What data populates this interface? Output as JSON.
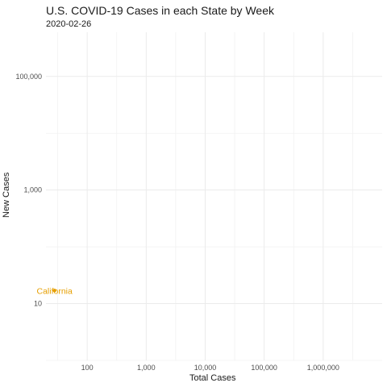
{
  "chart_data": {
    "type": "scatter",
    "title": "U.S. COVID-19 Cases in each State by Week",
    "subtitle": "2020-02-26",
    "xlabel": "Total Cases",
    "ylabel": "New Cases",
    "x_scale": "log10",
    "y_scale": "log10",
    "xlim": [
      20,
      10000000
    ],
    "ylim": [
      1,
      600000
    ],
    "x_ticks": [
      100,
      1000,
      10000,
      100000,
      1000000
    ],
    "x_tick_labels": [
      "100",
      "1,000",
      "10,000",
      "100,000",
      "1,000,000"
    ],
    "y_ticks": [
      10,
      1000,
      100000
    ],
    "y_tick_labels": [
      "10",
      "1,000",
      "100,000"
    ],
    "grid": true,
    "points": [
      {
        "label": "California",
        "x": 28,
        "y": 17,
        "color": "#e69f00"
      }
    ]
  }
}
